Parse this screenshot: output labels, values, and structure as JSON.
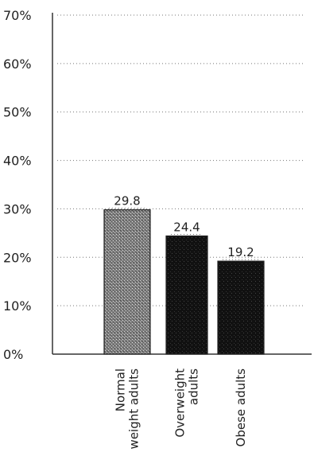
{
  "chart_data": {
    "type": "bar",
    "categories": [
      [
        "Normal",
        "weight adults"
      ],
      [
        "Overweight",
        "adults"
      ],
      [
        "Obese adults"
      ]
    ],
    "values": [
      29.8,
      24.4,
      19.2
    ],
    "data_labels": [
      "29.8",
      "24.4",
      "19.2"
    ],
    "ylim": [
      0,
      70
    ],
    "yticks": [
      0,
      10,
      20,
      30,
      40,
      50,
      60,
      70
    ],
    "ytick_labels": [
      "0%",
      "10%",
      "20%",
      "30%",
      "40%",
      "50%",
      "60%",
      "70%"
    ],
    "grid": true,
    "bar_styles": [
      "stipple-gray",
      "black",
      "black"
    ],
    "colors": {
      "bar_dark": "#111111",
      "bar_gray": "#6f6f6f",
      "grid": "#777777",
      "axis": "#333333"
    }
  }
}
